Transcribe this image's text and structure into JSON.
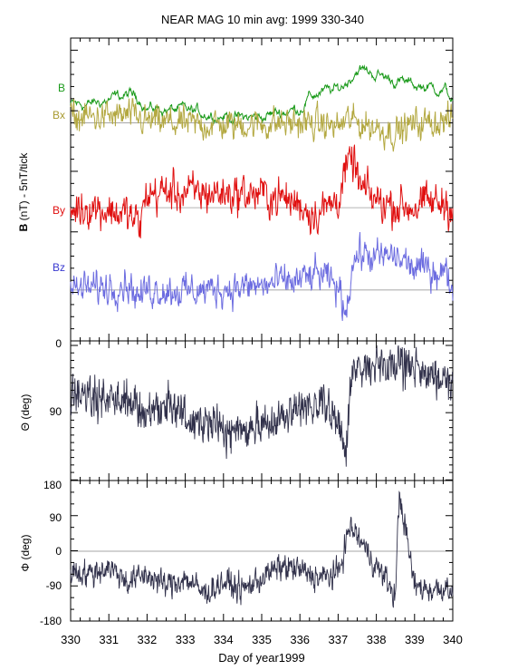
{
  "title": "NEAR MAG 10 min avg: 1999 330-340",
  "colors": {
    "B": "#1a9a1a",
    "Bx": "#b3a840",
    "By": "#e01010",
    "Bz": "#6c6ce0",
    "theta": "#30304a",
    "phi": "#30304a",
    "axis": "#000000",
    "refline": "#888888"
  },
  "xaxis": {
    "label": "Day of year1999",
    "range": [
      330,
      340
    ],
    "ticks": [
      "330",
      "331",
      "332",
      "333",
      "334",
      "335",
      "336",
      "337",
      "338",
      "339",
      "340"
    ]
  },
  "chart_data": [
    {
      "type": "line",
      "panel": "field-components",
      "ylabel_bold": "B",
      "ylabel_rest": " (nT) - 5nT/tick",
      "series": [
        {
          "name": "B",
          "color_key": "B",
          "baseline": 5.4,
          "noise": 0.55,
          "smooth": 0.85,
          "x": [
            330,
            330.5,
            331,
            331.5,
            331.8,
            332,
            332.5,
            333,
            333.5,
            334,
            334.5,
            335,
            335.5,
            336,
            336.2,
            336.5,
            337,
            337.3,
            337.5,
            338,
            338.5,
            339,
            339.5,
            339.8,
            340
          ],
          "y": [
            5.5,
            5.5,
            5.9,
            6.3,
            6.1,
            5.2,
            5.1,
            5.0,
            4.8,
            4.6,
            4.4,
            4.5,
            4.9,
            5.2,
            6.0,
            6.5,
            6.7,
            7.6,
            8.5,
            8.0,
            7.5,
            7.1,
            6.9,
            6.7,
            5.9
          ]
        },
        {
          "name": "Bx",
          "color_key": "Bx",
          "baseline": 4.0,
          "noise": 1.4,
          "smooth": 0.5,
          "x": [
            330,
            331,
            331.5,
            332,
            333,
            334,
            335,
            336,
            337,
            337.3,
            337.5,
            338,
            338.5,
            339,
            340
          ],
          "y": [
            4.4,
            4.5,
            4.6,
            4.1,
            3.9,
            3.8,
            3.9,
            4.0,
            3.7,
            4.3,
            4.0,
            3.6,
            3.2,
            3.9,
            4.2
          ]
        },
        {
          "name": "By",
          "color_key": "By",
          "baseline": -3.0,
          "noise": 1.8,
          "smooth": 0.5,
          "x": [
            330,
            330.5,
            331,
            331.5,
            331.8,
            332,
            332.5,
            333,
            334,
            335,
            335.5,
            336,
            336.3,
            336.6,
            337,
            337.2,
            337.4,
            337.6,
            338,
            338.5,
            339,
            339.5,
            340
          ],
          "y": [
            -3.2,
            -2.9,
            -3.2,
            -3.6,
            -4.5,
            -1.9,
            -1.7,
            -1.8,
            -1.8,
            -1.9,
            -2.2,
            -2.7,
            -3.4,
            -3.2,
            -2.2,
            0.0,
            0.9,
            -1.5,
            -2.4,
            -2.8,
            -2.9,
            -2.6,
            -2.7
          ]
        },
        {
          "name": "Bz",
          "color_key": "Bz",
          "baseline": -9.8,
          "noise": 1.5,
          "smooth": 0.5,
          "x": [
            330,
            331,
            331.5,
            331.8,
            332,
            333,
            334,
            335,
            335.5,
            336,
            336.5,
            337,
            337.2,
            337.4,
            337.6,
            338,
            338.5,
            339,
            339.5,
            339.8,
            340
          ],
          "y": [
            -9.8,
            -9.5,
            -9.2,
            -10.5,
            -9.7,
            -9.9,
            -9.7,
            -9.5,
            -9.2,
            -9.0,
            -8.5,
            -9.6,
            -11.5,
            -7.3,
            -6.8,
            -7.2,
            -7.0,
            -8.0,
            -8.1,
            -8.3,
            -9.6
          ]
        }
      ]
    },
    {
      "type": "line",
      "panel": "theta",
      "ylabel": "Θ (deg)",
      "ylim": [
        0,
        180
      ],
      "inverted": true,
      "yticks": [
        "0",
        "90"
      ],
      "series": [
        {
          "color_key": "theta",
          "noise": 28,
          "smooth": 0.3,
          "x": [
            330,
            330.5,
            331,
            331.5,
            332,
            332.5,
            333,
            333.5,
            334,
            334.5,
            335,
            335.5,
            336,
            336.5,
            337,
            337.2,
            337.3,
            337.5,
            338,
            338.3,
            338.5,
            339,
            339.5,
            340
          ],
          "y": [
            70,
            70,
            72,
            74,
            90,
            80,
            98,
            102,
            112,
            118,
            102,
            102,
            88,
            80,
            95,
            150,
            55,
            30,
            22,
            42,
            22,
            28,
            42,
            50
          ]
        }
      ]
    },
    {
      "type": "line",
      "panel": "phi",
      "ylabel": "Φ (deg)",
      "ylim": [
        -180,
        180
      ],
      "yticks": [
        "180",
        "90",
        "0",
        "-90",
        "-180"
      ],
      "series": [
        {
          "color_key": "phi",
          "noise": 35,
          "smooth": 0.35,
          "x": [
            330,
            330.5,
            331,
            331.5,
            332,
            332.5,
            333,
            333.5,
            334,
            334.5,
            335,
            335.5,
            336,
            336.5,
            337,
            337.3,
            337.5,
            338,
            338.3,
            338.5,
            338.6,
            339,
            339.5,
            340
          ],
          "y": [
            -50,
            -60,
            -40,
            -80,
            -60,
            -90,
            -70,
            -110,
            -80,
            -100,
            -70,
            -40,
            -50,
            -70,
            -60,
            60,
            40,
            -40,
            -80,
            -120,
            150,
            -90,
            -100,
            -90
          ]
        }
      ]
    }
  ],
  "series_labels": [
    "B",
    "Bx",
    "By",
    "Bz"
  ]
}
